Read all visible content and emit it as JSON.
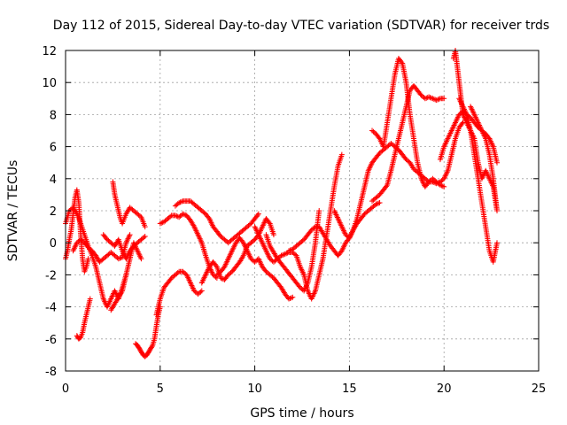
{
  "chart_data": {
    "type": "scatter",
    "title": "Day 112 of 2015, Sidereal Day-to-day VTEC variation (SDTVAR) for receiver trds",
    "xlabel": "GPS time / hours",
    "ylabel": "SDTVAR / TECUs",
    "xlim": [
      0,
      25
    ],
    "ylim": [
      -8,
      12
    ],
    "xticks": [
      "0",
      "5",
      "10",
      "15",
      "20",
      "25"
    ],
    "yticks": [
      "-8",
      "-6",
      "-4",
      "-2",
      "0",
      "2",
      "4",
      "6",
      "8",
      "10",
      "12"
    ],
    "grid": true,
    "marker": "plus",
    "color": "#ff0000",
    "series": [
      {
        "x": [
          0.0,
          0.1,
          0.2,
          0.3,
          0.4,
          0.5,
          0.6,
          0.7,
          0.8,
          0.9,
          1.0,
          1.1,
          1.2
        ],
        "y": [
          -1.0,
          -0.5,
          0.2,
          0.8,
          1.8,
          2.8,
          3.3,
          2.5,
          0.5,
          -1.0,
          -1.8,
          -1.5,
          -1.0
        ]
      },
      {
        "x": [
          0.0,
          0.2,
          0.4,
          0.6,
          0.8,
          1.0,
          1.2,
          1.4,
          1.6,
          1.8,
          2.0,
          2.2,
          2.4,
          2.6,
          2.8,
          3.0,
          3.2
        ],
        "y": [
          1.2,
          2.0,
          2.2,
          1.8,
          1.2,
          0.5,
          -0.2,
          -0.8,
          -1.5,
          -2.5,
          -3.5,
          -4.0,
          -3.5,
          -3.0,
          -3.5,
          -2.8,
          -2.0
        ]
      },
      {
        "x": [
          0.4,
          0.6,
          0.8,
          1.0,
          1.2,
          1.4,
          1.6,
          1.8,
          2.0,
          2.2,
          2.4,
          2.6,
          2.8,
          3.0,
          3.2,
          3.4
        ],
        "y": [
          -0.5,
          0.0,
          0.2,
          0.0,
          -0.3,
          -0.5,
          -0.8,
          -1.2,
          -1.0,
          -0.8,
          -0.6,
          -0.8,
          -1.0,
          -0.9,
          0.0,
          0.5
        ]
      },
      {
        "x": [
          0.6,
          0.7,
          0.8,
          0.9,
          1.0,
          1.1,
          1.2,
          1.3
        ],
        "y": [
          -5.8,
          -6.0,
          -5.9,
          -5.6,
          -5.0,
          -4.5,
          -4.0,
          -3.5
        ]
      },
      {
        "x": [
          2.4,
          2.6,
          2.8,
          3.0,
          3.2,
          3.4,
          3.6,
          3.8,
          4.0
        ],
        "y": [
          -4.2,
          -3.8,
          -3.4,
          -3.0,
          -2.0,
          -1.0,
          0.0,
          -0.5,
          -1.0
        ]
      },
      {
        "x": [
          2.0,
          2.2,
          2.4,
          2.6,
          2.8,
          3.0,
          3.2,
          3.4,
          3.6,
          3.8,
          4.0,
          4.2
        ],
        "y": [
          0.5,
          0.2,
          0.0,
          -0.2,
          0.2,
          -0.5,
          -1.0,
          -0.5,
          -0.2,
          0.0,
          0.2,
          0.4
        ]
      },
      {
        "x": [
          2.5,
          2.6,
          2.7,
          2.8,
          2.9,
          3.0,
          3.2,
          3.4,
          3.6,
          3.8,
          4.0,
          4.2
        ],
        "y": [
          3.8,
          3.0,
          2.5,
          2.0,
          1.5,
          1.2,
          1.8,
          2.2,
          2.0,
          1.8,
          1.6,
          1.0
        ]
      },
      {
        "x": [
          3.7,
          3.8,
          3.9,
          4.0,
          4.1,
          4.2,
          4.3,
          4.4,
          4.5,
          4.6,
          4.7,
          4.8,
          4.9,
          5.0
        ],
        "y": [
          -6.3,
          -6.4,
          -6.6,
          -6.8,
          -7.0,
          -7.1,
          -7.0,
          -6.8,
          -6.6,
          -6.4,
          -6.0,
          -5.2,
          -4.5,
          -4.0
        ]
      },
      {
        "x": [
          4.8,
          5.0,
          5.2,
          5.4,
          5.6,
          5.8,
          6.0,
          6.2,
          6.4,
          6.6,
          6.8,
          7.0,
          7.2
        ],
        "y": [
          -4.5,
          -3.5,
          -2.8,
          -2.5,
          -2.2,
          -2.0,
          -1.8,
          -1.8,
          -2.0,
          -2.5,
          -3.0,
          -3.2,
          -3.0
        ]
      },
      {
        "x": [
          5.0,
          5.2,
          5.4,
          5.6,
          5.8,
          6.0,
          6.2,
          6.4,
          6.6,
          6.8,
          7.0,
          7.2,
          7.4,
          7.6,
          7.8,
          8.0
        ],
        "y": [
          1.2,
          1.3,
          1.5,
          1.7,
          1.7,
          1.6,
          1.8,
          1.7,
          1.4,
          1.0,
          0.5,
          0.0,
          -0.8,
          -1.5,
          -2.0,
          -2.2
        ]
      },
      {
        "x": [
          5.8,
          6.0,
          6.2,
          6.4,
          6.6,
          6.8,
          7.0,
          7.2,
          7.4,
          7.6,
          7.8,
          8.0,
          8.2,
          8.4,
          8.6,
          8.8,
          9.0,
          9.2,
          9.4,
          9.6,
          9.8,
          10.0,
          10.2
        ],
        "y": [
          2.3,
          2.5,
          2.6,
          2.6,
          2.6,
          2.4,
          2.2,
          2.0,
          1.8,
          1.5,
          1.0,
          0.7,
          0.4,
          0.2,
          0.0,
          0.2,
          0.4,
          0.6,
          0.8,
          1.0,
          1.2,
          1.5,
          1.8
        ]
      },
      {
        "x": [
          7.2,
          7.4,
          7.6,
          7.8,
          8.0,
          8.2,
          8.4,
          8.6,
          8.8,
          9.0,
          9.2,
          9.4,
          9.6,
          9.8,
          10.0,
          10.2,
          10.4,
          10.6,
          10.8,
          11.0
        ],
        "y": [
          -2.5,
          -2.0,
          -1.5,
          -1.2,
          -1.5,
          -2.2,
          -2.3,
          -2.0,
          -1.8,
          -1.5,
          -1.2,
          -0.8,
          -0.2,
          0.0,
          0.2,
          0.5,
          1.0,
          1.5,
          1.2,
          0.5
        ]
      },
      {
        "x": [
          8.0,
          8.2,
          8.4,
          8.6,
          8.8,
          9.0,
          9.2,
          9.4,
          9.6,
          9.8,
          10.0,
          10.2,
          10.4,
          10.6,
          10.8,
          11.0,
          11.2,
          11.4,
          11.6,
          11.8,
          12.0
        ],
        "y": [
          -2.0,
          -1.8,
          -1.5,
          -1.0,
          -0.5,
          0.0,
          0.3,
          0.0,
          -0.5,
          -1.0,
          -1.2,
          -1.0,
          -1.5,
          -1.8,
          -2.0,
          -2.2,
          -2.5,
          -2.8,
          -3.2,
          -3.5,
          -3.4
        ]
      },
      {
        "x": [
          10.0,
          10.2,
          10.4,
          10.6,
          10.8,
          11.0,
          11.2,
          11.4,
          11.6,
          11.8,
          12.0,
          12.2,
          12.4,
          12.6,
          12.8,
          13.0,
          13.2,
          13.4,
          13.6,
          13.8,
          14.0,
          14.2,
          14.4,
          14.6
        ],
        "y": [
          1.0,
          0.5,
          0.0,
          -0.5,
          -1.0,
          -1.2,
          -1.0,
          -0.8,
          -0.7,
          -0.6,
          -0.6,
          -0.8,
          -1.5,
          -2.0,
          -3.0,
          -3.5,
          -3.0,
          -2.0,
          -1.0,
          0.5,
          2.0,
          3.5,
          4.8,
          5.5
        ]
      },
      {
        "x": [
          10.6,
          10.8,
          11.0,
          11.2,
          11.4,
          11.6,
          11.8,
          12.0,
          12.2,
          12.4,
          12.6,
          12.8,
          13.0,
          13.2,
          13.4
        ],
        "y": [
          0.5,
          -0.2,
          -0.6,
          -1.0,
          -1.3,
          -1.6,
          -1.9,
          -2.2,
          -2.5,
          -2.8,
          -3.0,
          -2.5,
          -1.5,
          0.0,
          2.0
        ]
      },
      {
        "x": [
          11.8,
          12.0,
          12.2,
          12.4,
          12.6,
          12.8,
          13.0,
          13.2,
          13.4,
          13.6,
          13.8,
          14.0,
          14.2,
          14.4,
          14.6,
          14.8,
          15.0,
          15.2,
          15.4,
          15.6,
          15.8,
          16.0,
          16.2,
          16.4,
          16.6
        ],
        "y": [
          -0.5,
          -0.4,
          -0.2,
          0.0,
          0.2,
          0.5,
          0.8,
          1.0,
          1.0,
          0.6,
          0.2,
          -0.2,
          -0.5,
          -0.8,
          -0.5,
          0.0,
          0.3,
          0.8,
          1.2,
          1.5,
          1.8,
          2.0,
          2.2,
          2.4,
          2.5
        ]
      },
      {
        "x": [
          14.2,
          14.4,
          14.6,
          14.8,
          15.0,
          15.2,
          15.4,
          15.6,
          15.8,
          16.0,
          16.2,
          16.4,
          16.6,
          16.8,
          17.0,
          17.2,
          17.4,
          17.6,
          17.8,
          18.0,
          18.2,
          18.4,
          18.6,
          18.8,
          19.0,
          19.2,
          19.4,
          19.6,
          19.8,
          20.0,
          20.2,
          20.4,
          20.6,
          20.8,
          21.0
        ],
        "y": [
          2.0,
          1.5,
          1.0,
          0.5,
          0.3,
          0.8,
          1.5,
          2.5,
          3.5,
          4.5,
          5.0,
          5.3,
          5.6,
          5.8,
          6.0,
          6.2,
          6.0,
          5.8,
          5.5,
          5.2,
          5.0,
          4.6,
          4.4,
          4.2,
          4.0,
          3.8,
          3.8,
          3.7,
          3.8,
          4.0,
          4.5,
          5.5,
          6.5,
          7.2,
          7.5
        ]
      },
      {
        "x": [
          16.2,
          16.4,
          16.6,
          16.8,
          17.0,
          17.2,
          17.4,
          17.6,
          17.8,
          18.0,
          18.2,
          18.4,
          18.6,
          18.8,
          19.0,
          19.2,
          19.4,
          19.6,
          19.8,
          20.0
        ],
        "y": [
          7.0,
          6.8,
          6.5,
          6.0,
          7.5,
          9.0,
          10.5,
          11.5,
          11.2,
          10.0,
          8.0,
          6.5,
          5.0,
          4.0,
          3.5,
          3.8,
          4.0,
          3.8,
          3.6,
          3.5
        ]
      },
      {
        "x": [
          16.2,
          16.4,
          16.6,
          16.8,
          17.0,
          17.2,
          17.4,
          17.6,
          17.8,
          18.0,
          18.2,
          18.4,
          18.6,
          18.8,
          19.0,
          19.2,
          19.4,
          19.6,
          19.8,
          20.0
        ],
        "y": [
          2.6,
          2.8,
          3.0,
          3.3,
          3.6,
          4.5,
          5.5,
          6.5,
          7.5,
          8.5,
          9.5,
          9.8,
          9.5,
          9.2,
          9.0,
          9.1,
          9.0,
          8.9,
          9.0,
          9.0
        ]
      },
      {
        "x": [
          19.8,
          20.0,
          20.2,
          20.4,
          20.6,
          20.8,
          21.0,
          21.2,
          21.4,
          21.6,
          21.8,
          22.0,
          22.2,
          22.4,
          22.6,
          22.8
        ],
        "y": [
          5.2,
          6.0,
          6.5,
          7.0,
          7.5,
          8.0,
          8.2,
          8.0,
          7.8,
          7.5,
          7.2,
          7.0,
          6.8,
          6.5,
          6.0,
          5.0
        ]
      },
      {
        "x": [
          20.5,
          20.6,
          20.7,
          20.8,
          20.9,
          21.0,
          21.2,
          21.4,
          21.6,
          21.8,
          22.0,
          22.2,
          22.4,
          22.6,
          22.8
        ],
        "y": [
          11.5,
          12.0,
          11.0,
          10.0,
          9.0,
          8.0,
          7.5,
          7.0,
          6.5,
          5.0,
          4.0,
          4.5,
          4.0,
          3.5,
          2.0
        ]
      },
      {
        "x": [
          20.8,
          21.0,
          21.2,
          21.4,
          21.6,
          21.8,
          22.0,
          22.2,
          22.4,
          22.6,
          22.8
        ],
        "y": [
          9.0,
          8.5,
          8.0,
          7.0,
          5.5,
          4.0,
          2.5,
          1.0,
          -0.5,
          -1.2,
          0.0
        ]
      },
      {
        "x": [
          21.4,
          21.6,
          21.8,
          22.0,
          22.2,
          22.4,
          22.6,
          22.8
        ],
        "y": [
          8.5,
          8.0,
          7.5,
          7.0,
          6.5,
          5.5,
          4.0,
          2.0
        ]
      }
    ]
  }
}
